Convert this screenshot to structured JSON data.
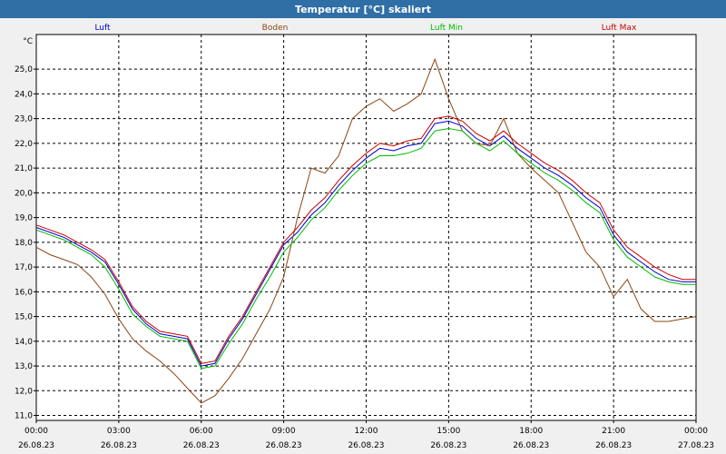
{
  "window": {
    "title": "Temperatur [°C] skaliert"
  },
  "colors": {
    "title_bar": "#2f6fa6",
    "plot_background": "#ffffff",
    "grid": "#000000"
  },
  "chart_data": {
    "type": "line",
    "title": "Temperatur [°C] skaliert",
    "unit_label": "°C",
    "ylim": [
      10.8,
      26.4
    ],
    "yticks": [
      "11,0",
      "12,0",
      "13,0",
      "14,0",
      "15,0",
      "16,0",
      "17,0",
      "18,0",
      "19,0",
      "20,0",
      "21,0",
      "22,0",
      "23,0",
      "24,0",
      "25,0"
    ],
    "ytick_values": [
      11,
      12,
      13,
      14,
      15,
      16,
      17,
      18,
      19,
      20,
      21,
      22,
      23,
      24,
      25
    ],
    "xlim": [
      0,
      24
    ],
    "xtick_hours": [
      0,
      3,
      6,
      9,
      12,
      15,
      18,
      21,
      24
    ],
    "xtick_times": [
      "00:00",
      "03:00",
      "06:00",
      "09:00",
      "12:00",
      "15:00",
      "18:00",
      "21:00",
      "00:00"
    ],
    "xtick_dates": [
      "26.08.23",
      "26.08.23",
      "26.08.23",
      "26.08.23",
      "26.08.23",
      "26.08.23",
      "26.08.23",
      "26.08.23",
      "27.08.23"
    ],
    "grid": true,
    "legend_placement": "top",
    "series": [
      {
        "name": "Luft",
        "color": "#0000cc",
        "x": [
          0,
          0.5,
          1,
          1.5,
          2,
          2.5,
          3,
          3.5,
          4,
          4.5,
          5,
          5.5,
          6,
          6.5,
          7,
          7.5,
          8,
          8.5,
          9,
          9.5,
          10,
          10.5,
          11,
          11.5,
          12,
          12.5,
          13,
          13.5,
          14,
          14.5,
          15,
          15.5,
          16,
          16.5,
          17,
          17.5,
          18,
          18.5,
          19,
          19.5,
          20,
          20.5,
          21,
          21.5,
          22,
          22.5,
          23,
          23.5,
          24
        ],
        "values": [
          18.6,
          18.4,
          18.2,
          17.9,
          17.6,
          17.2,
          16.3,
          15.3,
          14.7,
          14.3,
          14.2,
          14.1,
          13.0,
          13.1,
          14.1,
          14.9,
          15.9,
          16.9,
          17.9,
          18.4,
          19.1,
          19.6,
          20.3,
          20.9,
          21.4,
          21.8,
          21.7,
          21.9,
          22.0,
          22.8,
          22.9,
          22.7,
          22.2,
          21.9,
          22.3,
          21.8,
          21.4,
          21.0,
          20.7,
          20.3,
          19.8,
          19.4,
          18.3,
          17.6,
          17.2,
          16.8,
          16.5,
          16.4,
          16.4
        ]
      },
      {
        "name": "Boden",
        "color": "#8b4513",
        "x": [
          0,
          0.5,
          1,
          1.5,
          2,
          2.5,
          3,
          3.5,
          4,
          4.5,
          5,
          5.5,
          6,
          6.5,
          7,
          7.5,
          8,
          8.5,
          9,
          9.5,
          10,
          10.5,
          11,
          11.5,
          12,
          12.5,
          13,
          13.5,
          14,
          14.5,
          15,
          15.5,
          16,
          16.5,
          17,
          17.5,
          18,
          18.5,
          19,
          19.5,
          20,
          20.5,
          21,
          21.5,
          22,
          22.5,
          23,
          23.5,
          24
        ],
        "values": [
          17.8,
          17.5,
          17.3,
          17.1,
          16.6,
          15.9,
          14.9,
          14.1,
          13.6,
          13.2,
          12.7,
          12.1,
          11.5,
          11.8,
          12.5,
          13.3,
          14.3,
          15.3,
          16.6,
          19.0,
          21.0,
          20.8,
          21.5,
          23.0,
          23.5,
          23.8,
          23.3,
          23.6,
          24.0,
          25.4,
          23.8,
          22.5,
          22.0,
          21.9,
          23.0,
          21.6,
          21.0,
          20.5,
          20.0,
          18.8,
          17.6,
          17.0,
          15.8,
          16.5,
          15.3,
          14.8,
          14.8,
          14.9,
          15.0
        ]
      },
      {
        "name": "Luft Min",
        "color": "#00bb00",
        "x": [
          0,
          0.5,
          1,
          1.5,
          2,
          2.5,
          3,
          3.5,
          4,
          4.5,
          5,
          5.5,
          6,
          6.5,
          7,
          7.5,
          8,
          8.5,
          9,
          9.5,
          10,
          10.5,
          11,
          11.5,
          12,
          12.5,
          13,
          13.5,
          14,
          14.5,
          15,
          15.5,
          16,
          16.5,
          17,
          17.5,
          18,
          18.5,
          19,
          19.5,
          20,
          20.5,
          21,
          21.5,
          22,
          22.5,
          23,
          23.5,
          24
        ],
        "values": [
          18.5,
          18.3,
          18.1,
          17.8,
          17.5,
          17.0,
          16.1,
          15.1,
          14.6,
          14.2,
          14.1,
          14.0,
          12.9,
          13.0,
          13.9,
          14.7,
          15.7,
          16.6,
          17.6,
          18.2,
          18.9,
          19.4,
          20.1,
          20.7,
          21.2,
          21.5,
          21.5,
          21.6,
          21.8,
          22.5,
          22.6,
          22.5,
          22.0,
          21.7,
          22.1,
          21.6,
          21.2,
          20.8,
          20.5,
          20.1,
          19.6,
          19.2,
          18.1,
          17.4,
          17.0,
          16.6,
          16.4,
          16.3,
          16.3
        ]
      },
      {
        "name": "Luft Max",
        "color": "#cc0000",
        "x": [
          0,
          0.5,
          1,
          1.5,
          2,
          2.5,
          3,
          3.5,
          4,
          4.5,
          5,
          5.5,
          6,
          6.5,
          7,
          7.5,
          8,
          8.5,
          9,
          9.5,
          10,
          10.5,
          11,
          11.5,
          12,
          12.5,
          13,
          13.5,
          14,
          14.5,
          15,
          15.5,
          16,
          16.5,
          17,
          17.5,
          18,
          18.5,
          19,
          19.5,
          20,
          20.5,
          21,
          21.5,
          22,
          22.5,
          23,
          23.5,
          24
        ],
        "values": [
          18.7,
          18.5,
          18.3,
          18.0,
          17.7,
          17.3,
          16.4,
          15.4,
          14.8,
          14.4,
          14.3,
          14.2,
          13.1,
          13.2,
          14.2,
          15.0,
          16.0,
          17.0,
          18.0,
          18.6,
          19.3,
          19.8,
          20.5,
          21.1,
          21.6,
          22.0,
          21.9,
          22.1,
          22.2,
          23.0,
          23.1,
          22.9,
          22.4,
          22.1,
          22.5,
          22.0,
          21.6,
          21.2,
          20.9,
          20.5,
          20.0,
          19.6,
          18.5,
          17.8,
          17.4,
          17.0,
          16.7,
          16.5,
          16.5
        ]
      }
    ]
  }
}
